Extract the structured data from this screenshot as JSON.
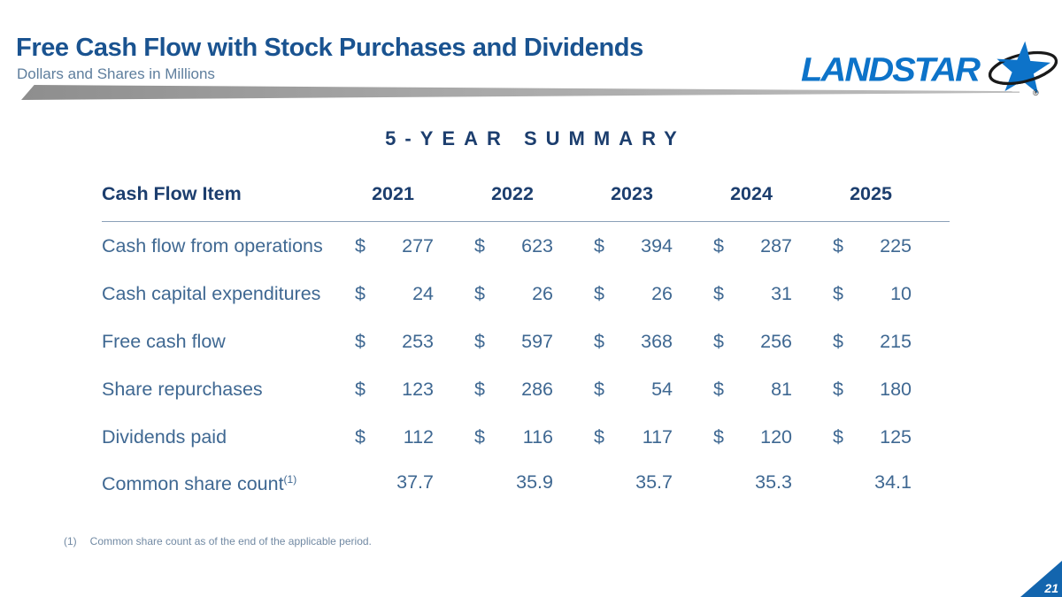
{
  "slide": {
    "title": "Free Cash Flow with Stock Purchases and Dividends",
    "subtitle": "Dollars and Shares in Millions",
    "section_heading": "5-YEAR SUMMARY",
    "page_number": "21"
  },
  "logo": {
    "text": "LANDSTAR",
    "registered_mark": "®",
    "star_icon": "star-with-orbit-swoosh"
  },
  "table": {
    "currency_symbol": "$",
    "header": [
      "Cash Flow Item",
      "2021",
      "2022",
      "2023",
      "2024",
      "2025"
    ],
    "rows": [
      {
        "label": "Cash flow from operations",
        "currency": true,
        "values": [
          "277",
          "623",
          "394",
          "287",
          "225"
        ]
      },
      {
        "label": "Cash capital expenditures",
        "currency": true,
        "values": [
          "24",
          "26",
          "26",
          "31",
          "10"
        ]
      },
      {
        "label": "Free cash flow",
        "currency": true,
        "values": [
          "253",
          "597",
          "368",
          "256",
          "215"
        ]
      },
      {
        "label": "Share repurchases",
        "currency": true,
        "values": [
          "123",
          "286",
          "54",
          "81",
          "180"
        ]
      },
      {
        "label": "Dividends paid",
        "currency": true,
        "values": [
          "112",
          "116",
          "117",
          "120",
          "125"
        ]
      },
      {
        "label": "Common share count",
        "label_superscript": "(1)",
        "currency": false,
        "values": [
          "37.7",
          "35.9",
          "35.7",
          "35.3",
          "34.1"
        ]
      }
    ]
  },
  "footnote": {
    "marker": "(1)",
    "text": "Common share count as of the end of the applicable period."
  },
  "colors": {
    "title_blue": "#1a5390",
    "header_navy": "#1c3e6e",
    "body_blue": "#3f6892",
    "subtitle_blue": "#5e7e9d",
    "footnote_blue": "#7189a3",
    "logo_blue": "#0d73c9",
    "corner_blue": "#1365ae",
    "ribbon_gray": "#9a9a9a",
    "divider_blue": "#8aa0b8"
  }
}
